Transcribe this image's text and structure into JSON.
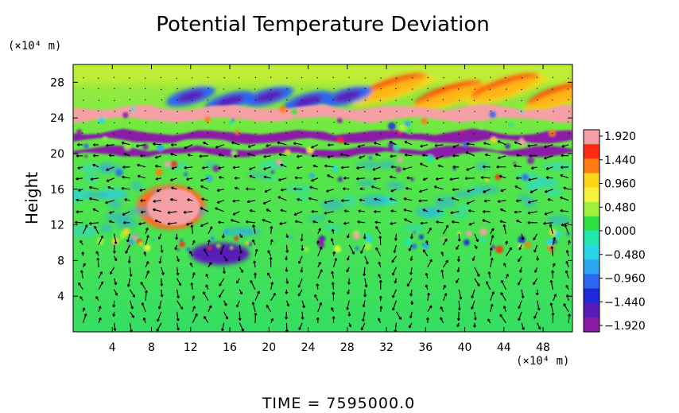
{
  "chart_data": {
    "type": "heatmap",
    "title": "Potential Temperature Deviation",
    "ylabel": "Height",
    "y_unit": "(×10⁴ m)",
    "x_unit": "(×10⁴ m)",
    "x_ticks": [
      4,
      8,
      12,
      16,
      20,
      24,
      28,
      32,
      36,
      40,
      44,
      48
    ],
    "y_ticks": [
      4,
      8,
      12,
      16,
      20,
      24,
      28
    ],
    "xlim": [
      0,
      51
    ],
    "ylim": [
      0,
      30
    ],
    "colorbar": {
      "tick_labels": [
        "1.920",
        "1.440",
        "0.960",
        "0.480",
        "0.000",
        "−0.480",
        "−0.960",
        "−1.440",
        "−1.920"
      ],
      "values": [
        1.92,
        1.44,
        0.96,
        0.48,
        0.0,
        -0.48,
        -0.96,
        -1.44,
        -1.92
      ],
      "colors": [
        "#f4a0a4",
        "#ff2a10",
        "#ff7a10",
        "#ffd51a",
        "#f4f23a",
        "#9ef03a",
        "#30e040",
        "#22e6aa",
        "#28d6e8",
        "#2aa7f0",
        "#2a66f0",
        "#1e2ad8",
        "#5a1ab8",
        "#8a1aa6"
      ]
    },
    "background_color": "#38e060",
    "features": [
      {
        "label": "warm band",
        "x": [
          0,
          51
        ],
        "y": [
          23.8,
          25.2
        ],
        "value": 1.92
      },
      {
        "label": "cold band",
        "x": [
          0,
          51
        ],
        "y": [
          21.4,
          22.4
        ],
        "value": -1.92
      },
      {
        "label": "cold band",
        "x": [
          0,
          51
        ],
        "y": [
          19.9,
          20.6
        ],
        "value": -1.92
      },
      {
        "label": "warm blob",
        "x": [
          6.5,
          13.5
        ],
        "y": [
          11.5,
          16.5
        ],
        "value": 1.92
      },
      {
        "label": "cold patch",
        "x": [
          12,
          18
        ],
        "y": [
          7.5,
          10
        ],
        "value": -1.44
      },
      {
        "label": "warm layer",
        "x": [
          28,
          51
        ],
        "y": [
          24.5,
          28.5
        ],
        "value": 1.44
      },
      {
        "label": "cold layer",
        "x": [
          10,
          30
        ],
        "y": [
          24.5,
          28
        ],
        "value": -1.44
      }
    ],
    "wind_vectors": true,
    "time_label": "TIME  =  7595000.0"
  }
}
